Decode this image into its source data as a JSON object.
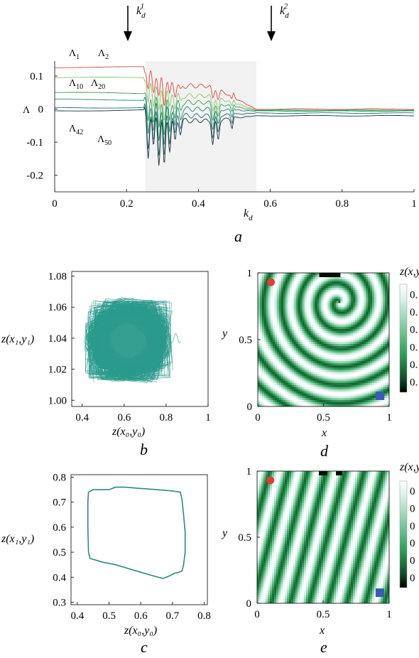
{
  "panels": {
    "a": "a",
    "b": "b",
    "c": "c",
    "d": "d",
    "e": "e"
  },
  "arrows": {
    "k1": {
      "base": "k",
      "sub": "d",
      "sup": "1",
      "x": 0.2
    },
    "k2": {
      "base": "k",
      "sub": "d",
      "sup": "2",
      "x": 0.6
    }
  },
  "chart_data": [
    {
      "id": "a",
      "type": "line",
      "xlabel_base": "k",
      "xlabel_sub": "d",
      "ylabel": "Λ",
      "xlim": [
        0,
        1
      ],
      "ylim": [
        -0.25,
        0.145
      ],
      "xticks": [
        "0",
        "0.2",
        "0.4",
        "0.6",
        "0.8",
        "1"
      ],
      "xtick_values": [
        0,
        0.2,
        0.4,
        0.6,
        0.8,
        1
      ],
      "yticks": [
        "0.1",
        "0",
        "-0.1",
        "-0.2"
      ],
      "ytick_values": [
        0.1,
        0,
        -0.1,
        -0.2
      ],
      "shaded_region": [
        0.25,
        0.56
      ],
      "series_labels": [
        {
          "base": "Λ",
          "sub": "1"
        },
        {
          "base": "Λ",
          "sub": "2"
        },
        {
          "base": "Λ",
          "sub": "10"
        },
        {
          "base": "Λ",
          "sub": "20"
        },
        {
          "base": "Λ",
          "sub": "42"
        },
        {
          "base": "Λ",
          "sub": "50"
        }
      ],
      "series": [
        {
          "color": "#e0463b",
          "flat_left": 0.125,
          "mid": 0.07,
          "flat_right": 0.0
        },
        {
          "color": "#8cc46a",
          "flat_left": 0.095,
          "mid": 0.04,
          "flat_right": -0.002
        },
        {
          "color": "#2e9e55",
          "flat_left": 0.05,
          "mid": 0.02,
          "flat_right": -0.004
        },
        {
          "color": "#1f8a6a",
          "flat_left": 0.03,
          "mid": 0.0,
          "flat_right": -0.006
        },
        {
          "color": "#1f6e6e",
          "flat_left": 0.005,
          "mid": -0.02,
          "flat_right": -0.012
        },
        {
          "color": "#16333a",
          "flat_left": -0.005,
          "mid": -0.035,
          "flat_right": -0.02
        }
      ]
    },
    {
      "id": "b",
      "type": "line",
      "xlabel": "z(x₀,y₀)",
      "ylabel": "z(x₁,y₁)",
      "xlim": [
        0.35,
        1.0
      ],
      "ylim": [
        0.996,
        1.083
      ],
      "xticks": [
        "0.4",
        "0.6",
        "0.8",
        "1"
      ],
      "xtick_values": [
        0.4,
        0.6,
        0.8,
        1.0
      ],
      "yticks": [
        "1.08",
        "1.06",
        "1.04",
        "1.02",
        "1.00"
      ],
      "ytick_values": [
        1.08,
        1.06,
        1.04,
        1.02,
        1.0
      ],
      "color": "#2a9a8c",
      "box": {
        "x": [
          0.44,
          0.8
        ],
        "y": [
          1.015,
          1.062
        ]
      }
    },
    {
      "id": "c",
      "type": "line",
      "xlabel": "z(x₀,y₀)",
      "ylabel": "z(x₁,y₁)",
      "xlim": [
        0.38,
        0.81
      ],
      "ylim": [
        0.29,
        0.81
      ],
      "xticks": [
        "0.4",
        "0.5",
        "0.6",
        "0.7",
        "0.8"
      ],
      "xtick_values": [
        0.4,
        0.5,
        0.6,
        0.7,
        0.8
      ],
      "yticks": [
        "0.8",
        "0.7",
        "0.6",
        "0.5",
        "0.4",
        "0.3"
      ],
      "ytick_values": [
        0.8,
        0.7,
        0.6,
        0.5,
        0.4,
        0.3
      ],
      "color": "#2a8a84",
      "loop": [
        [
          0.435,
          0.74
        ],
        [
          0.45,
          0.75
        ],
        [
          0.47,
          0.75
        ],
        [
          0.5,
          0.75
        ],
        [
          0.52,
          0.76
        ],
        [
          0.55,
          0.76
        ],
        [
          0.6,
          0.755
        ],
        [
          0.65,
          0.75
        ],
        [
          0.7,
          0.745
        ],
        [
          0.725,
          0.74
        ],
        [
          0.73,
          0.71
        ],
        [
          0.735,
          0.65
        ],
        [
          0.74,
          0.58
        ],
        [
          0.74,
          0.5
        ],
        [
          0.735,
          0.45
        ],
        [
          0.73,
          0.425
        ],
        [
          0.72,
          0.42
        ],
        [
          0.705,
          0.415
        ],
        [
          0.69,
          0.405
        ],
        [
          0.67,
          0.395
        ],
        [
          0.64,
          0.405
        ],
        [
          0.6,
          0.42
        ],
        [
          0.56,
          0.435
        ],
        [
          0.52,
          0.45
        ],
        [
          0.48,
          0.46
        ],
        [
          0.44,
          0.475
        ],
        [
          0.435,
          0.5
        ],
        [
          0.433,
          0.6
        ],
        [
          0.433,
          0.7
        ],
        [
          0.435,
          0.74
        ]
      ]
    },
    {
      "id": "d",
      "type": "heatmap",
      "xlabel": "x",
      "ylabel": "y",
      "xlim": [
        0,
        1
      ],
      "ylim": [
        0,
        1
      ],
      "xticks": [
        "0",
        "0.5",
        "1"
      ],
      "xtick_values": [
        0,
        0.5,
        1
      ],
      "yticks": [
        "1",
        "0.5",
        "0"
      ],
      "ytick_values": [
        1,
        0.5,
        0
      ],
      "colorbar_title": "z(x,y)",
      "colorbar_ticks": [
        "0.",
        "0.",
        "0.",
        "0.",
        "0.",
        "0."
      ],
      "colors": {
        "low": "#000000",
        "mid": "#2e9e55",
        "high": "#ffffff"
      },
      "pattern": "spiral",
      "markers": [
        {
          "shape": "circle",
          "color": "#e33b33",
          "x": 0.1,
          "y": 0.93
        },
        {
          "shape": "square",
          "color": "#3a5bb5",
          "x": 0.93,
          "y": 0.08
        }
      ]
    },
    {
      "id": "e",
      "type": "heatmap",
      "xlabel": "x",
      "ylabel": "y",
      "xlim": [
        0,
        1
      ],
      "ylim": [
        0,
        1
      ],
      "xticks": [
        "0",
        "0.5",
        "1"
      ],
      "xtick_values": [
        0,
        0.5,
        1
      ],
      "yticks": [
        "1",
        "0.5",
        "0"
      ],
      "ytick_values": [
        1,
        0.5,
        0
      ],
      "colorbar_title": "z(x,y)",
      "colorbar_ticks": [
        "0",
        "0",
        "0",
        "0",
        "0",
        "0"
      ],
      "colors": {
        "low": "#000000",
        "mid": "#2e9e55",
        "high": "#ffffff"
      },
      "pattern": "stripes",
      "markers": [
        {
          "shape": "circle",
          "color": "#e33b33",
          "x": 0.1,
          "y": 0.93
        },
        {
          "shape": "square",
          "color": "#3a5bb5",
          "x": 0.93,
          "y": 0.08
        }
      ]
    }
  ]
}
